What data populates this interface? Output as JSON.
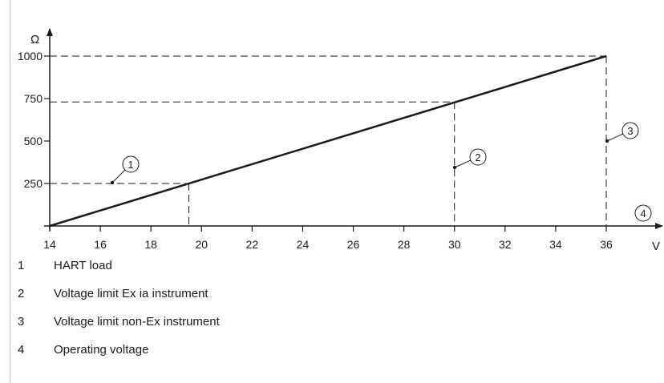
{
  "chart_data": {
    "type": "line",
    "xlabel": "V",
    "ylabel": "Ω",
    "xlim": [
      14,
      36
    ],
    "ylim": [
      0,
      1000
    ],
    "x_ticks": [
      "14",
      "16",
      "18",
      "20",
      "22",
      "24",
      "26",
      "28",
      "30",
      "32",
      "34",
      "36"
    ],
    "y_ticks": [
      "250",
      "500",
      "750",
      "1000"
    ],
    "series": [
      {
        "x": [
          14,
          36
        ],
        "y": [
          0,
          1000
        ]
      }
    ],
    "reference_lines": [
      {
        "marker": "1",
        "x": 19.5,
        "y": 250
      },
      {
        "marker": "2",
        "x": 30,
        "y": 730
      },
      {
        "marker": "3",
        "x": 36,
        "y": 1000
      }
    ],
    "callouts": [
      {
        "label": "1",
        "target": "HART load"
      },
      {
        "label": "2",
        "target": "Voltage limit Ex ia instrument"
      },
      {
        "label": "3",
        "target": "Voltage limit non-Ex instrument"
      },
      {
        "label": "4",
        "target": "Operating voltage"
      }
    ]
  },
  "legend": [
    {
      "num": "1",
      "text": "HART load"
    },
    {
      "num": "2",
      "text": "Voltage limit Ex ia instrument"
    },
    {
      "num": "3",
      "text": "Voltage limit non-Ex instrument"
    },
    {
      "num": "4",
      "text": "Operating voltage"
    }
  ]
}
